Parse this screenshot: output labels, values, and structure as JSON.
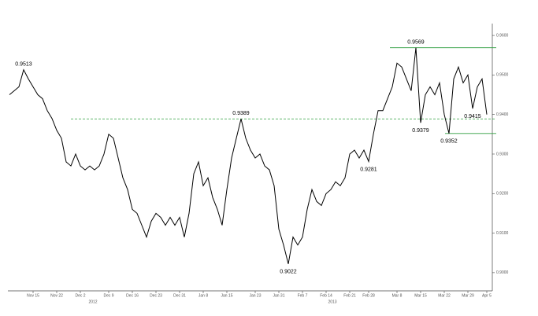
{
  "chart_data": {
    "type": "line",
    "categories": [
      null,
      null,
      null,
      null,
      null,
      "Nov 15",
      null,
      null,
      null,
      null,
      "Nov 22",
      null,
      null,
      null,
      null,
      "Dec 2",
      null,
      null,
      null,
      null,
      null,
      "Dec 9",
      null,
      null,
      null,
      null,
      "Dec 16",
      null,
      null,
      null,
      null,
      "Dec 23",
      null,
      null,
      null,
      null,
      "Dec 31",
      null,
      null,
      null,
      null,
      "Jan 8",
      null,
      null,
      null,
      null,
      "Jan 15",
      null,
      null,
      null,
      null,
      null,
      "Jan 23",
      null,
      null,
      null,
      null,
      "Jan 31",
      null,
      null,
      null,
      null,
      "Feb 7",
      null,
      null,
      null,
      null,
      "Feb 14",
      null,
      null,
      null,
      null,
      "Feb 21",
      null,
      null,
      null,
      "Feb 28",
      null,
      null,
      null,
      null,
      null,
      "Mar 8",
      null,
      null,
      null,
      null,
      "Mar 15",
      null,
      null,
      null,
      null,
      "Mar 22",
      null,
      null,
      null,
      null,
      "Mar 29",
      null,
      null,
      null,
      "Apr 5"
    ],
    "values": [
      0.945,
      0.946,
      0.947,
      0.9513,
      0.949,
      0.947,
      0.945,
      0.944,
      0.941,
      0.939,
      0.936,
      0.934,
      0.928,
      0.927,
      0.93,
      0.927,
      0.926,
      0.927,
      0.926,
      0.927,
      0.93,
      0.935,
      0.934,
      0.929,
      0.924,
      0.921,
      0.916,
      0.915,
      0.912,
      0.909,
      0.913,
      0.915,
      0.914,
      0.912,
      0.914,
      0.912,
      0.914,
      0.909,
      0.915,
      0.925,
      0.928,
      0.922,
      0.924,
      0.919,
      0.916,
      0.912,
      0.921,
      0.929,
      0.934,
      0.9389,
      0.934,
      0.931,
      0.929,
      0.93,
      0.927,
      0.926,
      0.922,
      0.911,
      0.907,
      0.9022,
      0.909,
      0.907,
      0.909,
      0.916,
      0.921,
      0.918,
      0.917,
      0.92,
      0.921,
      0.923,
      0.922,
      0.924,
      0.93,
      0.931,
      0.929,
      0.931,
      0.9281,
      0.935,
      0.941,
      0.941,
      0.944,
      0.947,
      0.953,
      0.952,
      0.949,
      0.946,
      0.9569,
      0.9379,
      0.945,
      0.947,
      0.945,
      0.948,
      0.94,
      0.9352,
      0.949,
      0.952,
      0.948,
      0.95,
      0.9415,
      0.947,
      0.949,
      0.94
    ],
    "value_labels": [
      null,
      null,
      null,
      "0.9513",
      null,
      null,
      null,
      null,
      null,
      null,
      null,
      null,
      null,
      null,
      null,
      null,
      null,
      null,
      null,
      null,
      null,
      null,
      null,
      null,
      null,
      null,
      null,
      null,
      null,
      null,
      null,
      null,
      null,
      null,
      null,
      null,
      null,
      null,
      null,
      null,
      null,
      null,
      null,
      null,
      null,
      null,
      null,
      null,
      null,
      "0.9389",
      null,
      null,
      null,
      null,
      null,
      null,
      null,
      null,
      null,
      "0.9022",
      null,
      null,
      null,
      null,
      null,
      null,
      null,
      null,
      null,
      null,
      null,
      null,
      null,
      null,
      null,
      null,
      "0.9281",
      null,
      null,
      null,
      null,
      null,
      null,
      null,
      null,
      null,
      "0.9569",
      "0.9379",
      null,
      null,
      null,
      null,
      null,
      "0.9352",
      null,
      null,
      null,
      null,
      "0.9415",
      null,
      null,
      null
    ],
    "color": "#000000",
    "ylim": [
      0.8958,
      0.963
    ],
    "yticks": [
      {
        "value": 0.96,
        "label": "0.9600"
      },
      {
        "value": 0.95,
        "label": "0.9500"
      },
      {
        "value": 0.94,
        "label": "0.9400"
      },
      {
        "value": 0.93,
        "label": "0.9300"
      },
      {
        "value": 0.92,
        "label": "0.9200"
      },
      {
        "value": 0.91,
        "label": "0.9100"
      },
      {
        "value": 0.9,
        "label": "0.9000"
      }
    ],
    "year_labels": [
      "2012",
      "2013"
    ]
  }
}
